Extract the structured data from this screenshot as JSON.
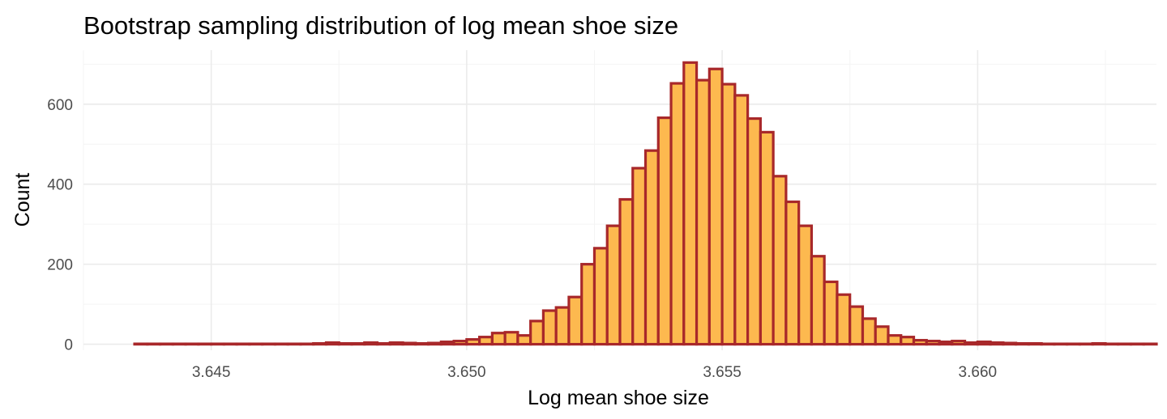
{
  "chart_data": {
    "type": "bar",
    "title": "Bootstrap sampling distribution of log mean shoe size",
    "xlabel": "Log mean shoe size",
    "ylabel": "Count",
    "xlim": [
      3.6425,
      3.6635
    ],
    "ylim": [
      -15,
      735
    ],
    "x_ticks": [
      3.645,
      3.65,
      3.655,
      3.66
    ],
    "x_tick_labels": [
      "3.645",
      "3.650",
      "3.655",
      "3.660"
    ],
    "y_ticks": [
      0,
      200,
      400,
      600
    ],
    "y_tick_labels": [
      "0",
      "200",
      "400",
      "600"
    ],
    "bin_start": 3.6435,
    "bin_width": 0.00025,
    "counts": [
      1,
      1,
      1,
      1,
      1,
      1,
      1,
      1,
      1,
      1,
      1,
      1,
      1,
      1,
      2,
      4,
      2,
      2,
      4,
      2,
      4,
      3,
      2,
      3,
      6,
      8,
      12,
      18,
      28,
      30,
      22,
      58,
      84,
      92,
      118,
      200,
      240,
      296,
      362,
      440,
      484,
      566,
      652,
      704,
      660,
      688,
      650,
      622,
      564,
      530,
      420,
      356,
      296,
      220,
      156,
      124,
      94,
      64,
      44,
      22,
      18,
      10,
      8,
      6,
      8,
      4,
      6,
      4,
      3,
      2,
      2,
      1,
      1,
      1,
      1,
      2,
      1,
      1,
      1,
      1
    ]
  },
  "colors": {
    "fill": "#FDB94F",
    "stroke": "#A8282A",
    "grid": "#EBEBEB",
    "tick_text": "#4D4D4D"
  }
}
